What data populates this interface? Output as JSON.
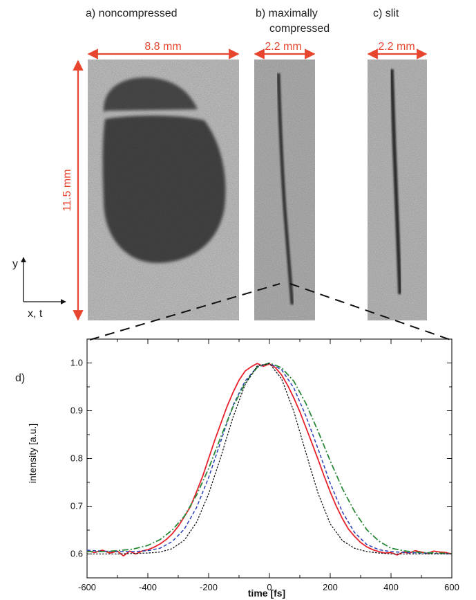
{
  "panels": {
    "a": {
      "title": "a) noncompressed",
      "width_label": "8.8 mm",
      "height_label": "11.5 mm"
    },
    "b": {
      "title_line1": "b) maximally",
      "title_line2": "compressed",
      "width_label": "2.2 mm"
    },
    "c": {
      "title": "c) slit",
      "width_label": "2.2 mm"
    }
  },
  "axes_indicator": {
    "y": "y",
    "xt": "x, t"
  },
  "panel_d_label": "d)",
  "colors": {
    "dimension_arrow": "#e8452e",
    "measured_red": "#e8202a",
    "blue_dashed": "#2a3fb8",
    "green_dashdot": "#2a8a3a",
    "black_dotted": "#111111",
    "image_background": "#c9c9c9",
    "image_spot": "#4a4a4a"
  },
  "chart_data": {
    "type": "line",
    "xlabel": "time [fs]",
    "ylabel": "intensity [a.u.]",
    "xlim": [
      -600,
      600
    ],
    "ylim": [
      0.55,
      1.05
    ],
    "xticks": [
      -600,
      -400,
      -200,
      0,
      200,
      400,
      600
    ],
    "yticks": [
      0.6,
      0.7,
      0.8,
      0.9,
      1.0
    ],
    "ytick_labels": [
      "0.6",
      "0.7",
      "0.8",
      "0.9",
      "1.0"
    ],
    "grid": false,
    "series": [
      {
        "style": "solid",
        "color": "#e8202a",
        "x": [
          -600,
          -575,
          -550,
          -525,
          -500,
          -480,
          -460,
          -440,
          -420,
          -400,
          -380,
          -360,
          -340,
          -320,
          -300,
          -280,
          -260,
          -240,
          -220,
          -200,
          -180,
          -160,
          -140,
          -120,
          -100,
          -80,
          -60,
          -40,
          -20,
          0,
          20,
          40,
          60,
          80,
          100,
          120,
          140,
          160,
          180,
          200,
          220,
          240,
          260,
          280,
          300,
          320,
          340,
          360,
          380,
          400,
          420,
          440,
          460,
          480,
          500,
          520,
          540,
          560,
          580,
          600
        ],
        "y": [
          0.607,
          0.603,
          0.608,
          0.602,
          0.606,
          0.596,
          0.606,
          0.6,
          0.606,
          0.609,
          0.614,
          0.621,
          0.63,
          0.642,
          0.658,
          0.678,
          0.699,
          0.73,
          0.762,
          0.8,
          0.838,
          0.873,
          0.908,
          0.938,
          0.964,
          0.983,
          0.992,
          0.999,
          0.993,
          0.998,
          0.99,
          0.975,
          0.953,
          0.927,
          0.898,
          0.865,
          0.832,
          0.798,
          0.763,
          0.73,
          0.7,
          0.674,
          0.652,
          0.637,
          0.624,
          0.615,
          0.609,
          0.605,
          0.602,
          0.603,
          0.598,
          0.604,
          0.602,
          0.607,
          0.604,
          0.601,
          0.606,
          0.604,
          0.603,
          0.6
        ]
      },
      {
        "style": "dashed",
        "color": "#2a3fb8",
        "x": [
          -600,
          -550,
          -500,
          -450,
          -400,
          -360,
          -320,
          -280,
          -240,
          -200,
          -160,
          -120,
          -80,
          -40,
          0,
          40,
          80,
          120,
          160,
          200,
          240,
          280,
          320,
          360,
          400,
          450,
          500,
          550,
          600
        ],
        "y": [
          0.608,
          0.606,
          0.605,
          0.605,
          0.607,
          0.612,
          0.626,
          0.652,
          0.697,
          0.76,
          0.836,
          0.911,
          0.962,
          0.992,
          0.999,
          0.986,
          0.948,
          0.889,
          0.82,
          0.748,
          0.688,
          0.645,
          0.62,
          0.609,
          0.605,
          0.603,
          0.602,
          0.601,
          0.6
        ]
      },
      {
        "style": "dashdot",
        "color": "#2a8a3a",
        "x": [
          -600,
          -550,
          -500,
          -450,
          -400,
          -360,
          -320,
          -280,
          -240,
          -200,
          -160,
          -120,
          -80,
          -40,
          0,
          40,
          80,
          120,
          160,
          200,
          240,
          280,
          320,
          360,
          400,
          450,
          500,
          550,
          600
        ],
        "y": [
          0.605,
          0.605,
          0.607,
          0.61,
          0.618,
          0.63,
          0.65,
          0.679,
          0.723,
          0.779,
          0.845,
          0.908,
          0.958,
          0.991,
          1.0,
          0.99,
          0.962,
          0.915,
          0.857,
          0.795,
          0.737,
          0.689,
          0.651,
          0.627,
          0.612,
          0.606,
          0.603,
          0.602,
          0.601
        ]
      },
      {
        "style": "dotted",
        "color": "#111111",
        "x": [
          -600,
          -550,
          -500,
          -450,
          -400,
          -360,
          -320,
          -280,
          -240,
          -200,
          -160,
          -120,
          -80,
          -40,
          0,
          40,
          80,
          120,
          160,
          200,
          240,
          280,
          320,
          360,
          400,
          450,
          500,
          550,
          600
        ],
        "y": [
          0.6,
          0.6,
          0.6,
          0.601,
          0.602,
          0.604,
          0.611,
          0.629,
          0.666,
          0.726,
          0.803,
          0.886,
          0.955,
          0.994,
          0.999,
          0.967,
          0.899,
          0.812,
          0.727,
          0.663,
          0.628,
          0.612,
          0.605,
          0.602,
          0.6,
          0.6,
          0.6,
          0.6,
          0.6
        ]
      }
    ]
  }
}
